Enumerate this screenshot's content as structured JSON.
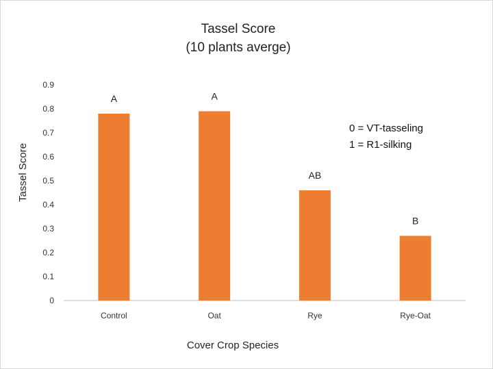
{
  "chart_data": {
    "type": "bar",
    "title": "Tassel Score",
    "subtitle": "(10 plants averge)",
    "xlabel": "Cover Crop Species",
    "ylabel": "Tassel Score",
    "categories": [
      "Control",
      "Oat",
      "Rye",
      "Rye-Oat"
    ],
    "values": [
      0.78,
      0.79,
      0.46,
      0.27
    ],
    "data_labels": [
      "A",
      "A",
      "AB",
      "B"
    ],
    "ylim": [
      0,
      0.9
    ],
    "yticks": [
      "0",
      "0.1",
      "0.2",
      "0.3",
      "0.4",
      "0.5",
      "0.6",
      "0.7",
      "0.8",
      "0.9"
    ],
    "bar_color": "#ED7D31",
    "grid": false,
    "legend": "none",
    "annotations": [
      "0 = VT-tasseling",
      "1 = R1-silking"
    ]
  }
}
